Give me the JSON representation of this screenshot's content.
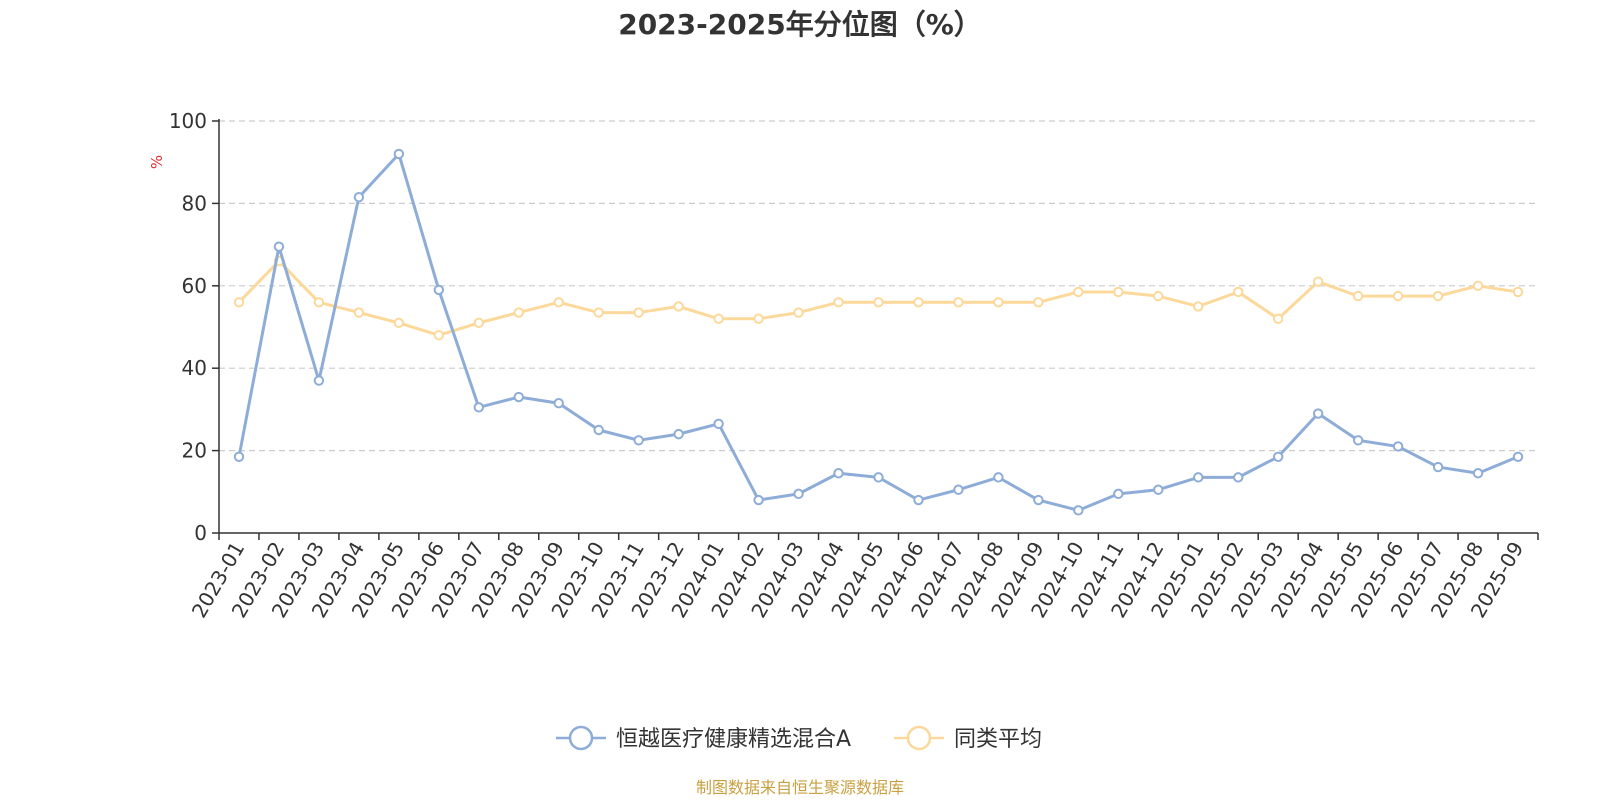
{
  "chart_data": {
    "type": "line",
    "title": "2023-2025年分位图（%）",
    "ylabel": "%",
    "xlabel": "",
    "ylim": [
      0,
      100
    ],
    "yticks": [
      0,
      20,
      40,
      60,
      80,
      100
    ],
    "grid": true,
    "legend_position": "bottom",
    "categories": [
      "2023-01",
      "2023-02",
      "2023-03",
      "2023-04",
      "2023-05",
      "2023-06",
      "2023-07",
      "2023-08",
      "2023-09",
      "2023-10",
      "2023-11",
      "2023-12",
      "2024-01",
      "2024-02",
      "2024-03",
      "2024-04",
      "2024-05",
      "2024-06",
      "2024-07",
      "2024-08",
      "2024-09",
      "2024-10",
      "2024-11",
      "2024-12",
      "2025-01",
      "2025-02",
      "2025-03",
      "2025-04",
      "2025-05",
      "2025-06",
      "2025-07",
      "2025-08",
      "2025-09"
    ],
    "series": [
      {
        "name": "恒越医疗健康精选混合A",
        "color": "#8eacd8",
        "values": [
          18.5,
          69.5,
          37,
          81.5,
          92,
          59,
          30.5,
          33,
          31.5,
          25,
          22.5,
          24,
          26.5,
          8,
          9.5,
          14.5,
          13.5,
          8,
          10.5,
          13.5,
          8,
          5.5,
          9.5,
          10.5,
          13.5,
          13.5,
          18.5,
          29,
          22.5,
          21,
          16,
          14.5,
          18.5
        ]
      },
      {
        "name": "同类平均",
        "color": "#fcd99a",
        "values": [
          56,
          66,
          56,
          53.5,
          51,
          48,
          51,
          53.5,
          56,
          53.5,
          53.5,
          55,
          52,
          52,
          53.5,
          56,
          56,
          56,
          56,
          56,
          56,
          58.5,
          58.5,
          57.5,
          55,
          58.5,
          52,
          61,
          57.5,
          57.5,
          57.5,
          60,
          58.5
        ]
      }
    ]
  },
  "colors": {
    "unit_label": "#e03030",
    "source_text": "#c8a040",
    "axis": "#333333",
    "grid": "#cccccc"
  },
  "source": "制图数据来自恒生聚源数据库"
}
